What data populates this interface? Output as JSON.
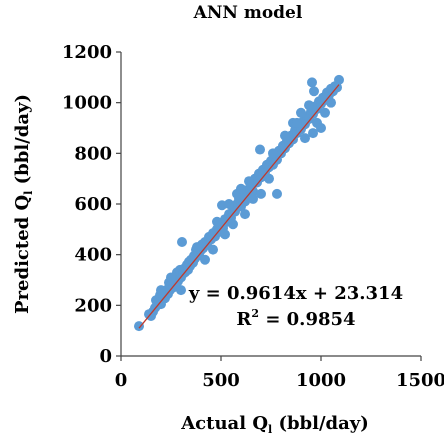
{
  "chart_data": {
    "type": "scatter",
    "title": "ANN model",
    "xlabel": {
      "main": "Actual Q",
      "sub": "l",
      "unit": " (bbl/day)"
    },
    "ylabel": {
      "main": "Predicted Q",
      "sub": "l",
      "unit": " (bbl/day)"
    },
    "xlim": [
      0,
      1500
    ],
    "ylim": [
      0,
      1200
    ],
    "x_ticks": [
      "0",
      "500",
      "1000",
      "1500"
    ],
    "y_ticks": [
      "0",
      "200",
      "400",
      "600",
      "800",
      "1000",
      "1200"
    ],
    "grid": false,
    "marker_color": "#5b9bd5",
    "trendline_color": "#c0392b",
    "trendline": {
      "slope": 0.9614,
      "intercept": 23.314,
      "x_range": [
        90,
        1090
      ]
    },
    "equation": "y = 0.9614x + 23.314",
    "r2_label": "R",
    "r2_sup": "2",
    "r2_value": " = 0.9854",
    "series": [
      {
        "points": [
          [
            90,
            118
          ],
          [
            140,
            165
          ],
          [
            150,
            158
          ],
          [
            160,
            175
          ],
          [
            170,
            190
          ],
          [
            175,
            220
          ],
          [
            180,
            200
          ],
          [
            190,
            215
          ],
          [
            195,
            240
          ],
          [
            200,
            205
          ],
          [
            210,
            232
          ],
          [
            215,
            250
          ],
          [
            220,
            228
          ],
          [
            230,
            262
          ],
          [
            235,
            245
          ],
          [
            240,
            290
          ],
          [
            245,
            260
          ],
          [
            250,
            275
          ],
          [
            255,
            300
          ],
          [
            260,
            270
          ],
          [
            265,
            310
          ],
          [
            270,
            285
          ],
          [
            275,
            300
          ],
          [
            280,
            330
          ],
          [
            285,
            295
          ],
          [
            290,
            315
          ],
          [
            295,
            340
          ],
          [
            300,
            310
          ],
          [
            305,
            450
          ],
          [
            310,
            325
          ],
          [
            315,
            345
          ],
          [
            320,
            330
          ],
          [
            330,
            360
          ],
          [
            335,
            340
          ],
          [
            340,
            372
          ],
          [
            345,
            355
          ],
          [
            350,
            380
          ],
          [
            360,
            368
          ],
          [
            365,
            395
          ],
          [
            370,
            385
          ],
          [
            375,
            420
          ],
          [
            380,
            400
          ],
          [
            385,
            412
          ],
          [
            390,
            398
          ],
          [
            395,
            430
          ],
          [
            400,
            418
          ],
          [
            405,
            440
          ],
          [
            410,
            425
          ],
          [
            420,
            450
          ],
          [
            430,
            438
          ],
          [
            440,
            470
          ],
          [
            450,
            460
          ],
          [
            460,
            485
          ],
          [
            470,
            472
          ],
          [
            480,
            500
          ],
          [
            490,
            490
          ],
          [
            500,
            525
          ],
          [
            505,
            595
          ],
          [
            510,
            505
          ],
          [
            520,
            540
          ],
          [
            530,
            530
          ],
          [
            540,
            560
          ],
          [
            550,
            545
          ],
          [
            560,
            585
          ],
          [
            570,
            570
          ],
          [
            580,
            600
          ],
          [
            590,
            620
          ],
          [
            600,
            590
          ],
          [
            610,
            640
          ],
          [
            620,
            610
          ],
          [
            630,
            655
          ],
          [
            640,
            630
          ],
          [
            650,
            670
          ],
          [
            660,
            650
          ],
          [
            670,
            700
          ],
          [
            680,
            685
          ],
          [
            690,
            720
          ],
          [
            695,
            815
          ],
          [
            700,
            705
          ],
          [
            710,
            735
          ],
          [
            720,
            725
          ],
          [
            730,
            755
          ],
          [
            740,
            745
          ],
          [
            750,
            770
          ],
          [
            760,
            755
          ],
          [
            770,
            790
          ],
          [
            780,
            775
          ],
          [
            790,
            810
          ],
          [
            800,
            800
          ],
          [
            810,
            830
          ],
          [
            820,
            820
          ],
          [
            830,
            850
          ],
          [
            840,
            840
          ],
          [
            850,
            870
          ],
          [
            860,
            855
          ],
          [
            870,
            890
          ],
          [
            880,
            880
          ],
          [
            890,
            905
          ],
          [
            900,
            895
          ],
          [
            910,
            925
          ],
          [
            920,
            915
          ],
          [
            930,
            945
          ],
          [
            940,
            935
          ],
          [
            950,
            965
          ],
          [
            955,
            1080
          ],
          [
            960,
            955
          ],
          [
            965,
            1045
          ],
          [
            970,
            985
          ],
          [
            980,
            975
          ],
          [
            990,
            1005
          ],
          [
            1000,
            995
          ],
          [
            1010,
            1020
          ],
          [
            1020,
            1010
          ],
          [
            1030,
            1040
          ],
          [
            1040,
            1030
          ],
          [
            1050,
            1055
          ],
          [
            1060,
            1045
          ],
          [
            1070,
            1065
          ],
          [
            1080,
            1060
          ],
          [
            1090,
            1090
          ],
          [
            580,
            640
          ],
          [
            620,
            560
          ],
          [
            700,
            640
          ],
          [
            740,
            700
          ],
          [
            780,
            640
          ],
          [
            860,
            920
          ],
          [
            920,
            860
          ],
          [
            980,
            920
          ],
          [
            1000,
            900
          ],
          [
            960,
            880
          ],
          [
            540,
            600
          ],
          [
            660,
            620
          ],
          [
            460,
            420
          ],
          [
            520,
            480
          ],
          [
            600,
            660
          ],
          [
            380,
            430
          ],
          [
            420,
            380
          ],
          [
            250,
            310
          ],
          [
            300,
            260
          ],
          [
            200,
            260
          ],
          [
            880,
            920
          ],
          [
            940,
            990
          ],
          [
            1020,
            960
          ],
          [
            1050,
            1000
          ],
          [
            900,
            960
          ],
          [
            820,
            870
          ],
          [
            760,
            800
          ],
          [
            640,
            690
          ],
          [
            560,
            520
          ],
          [
            480,
            530
          ]
        ]
      }
    ]
  }
}
